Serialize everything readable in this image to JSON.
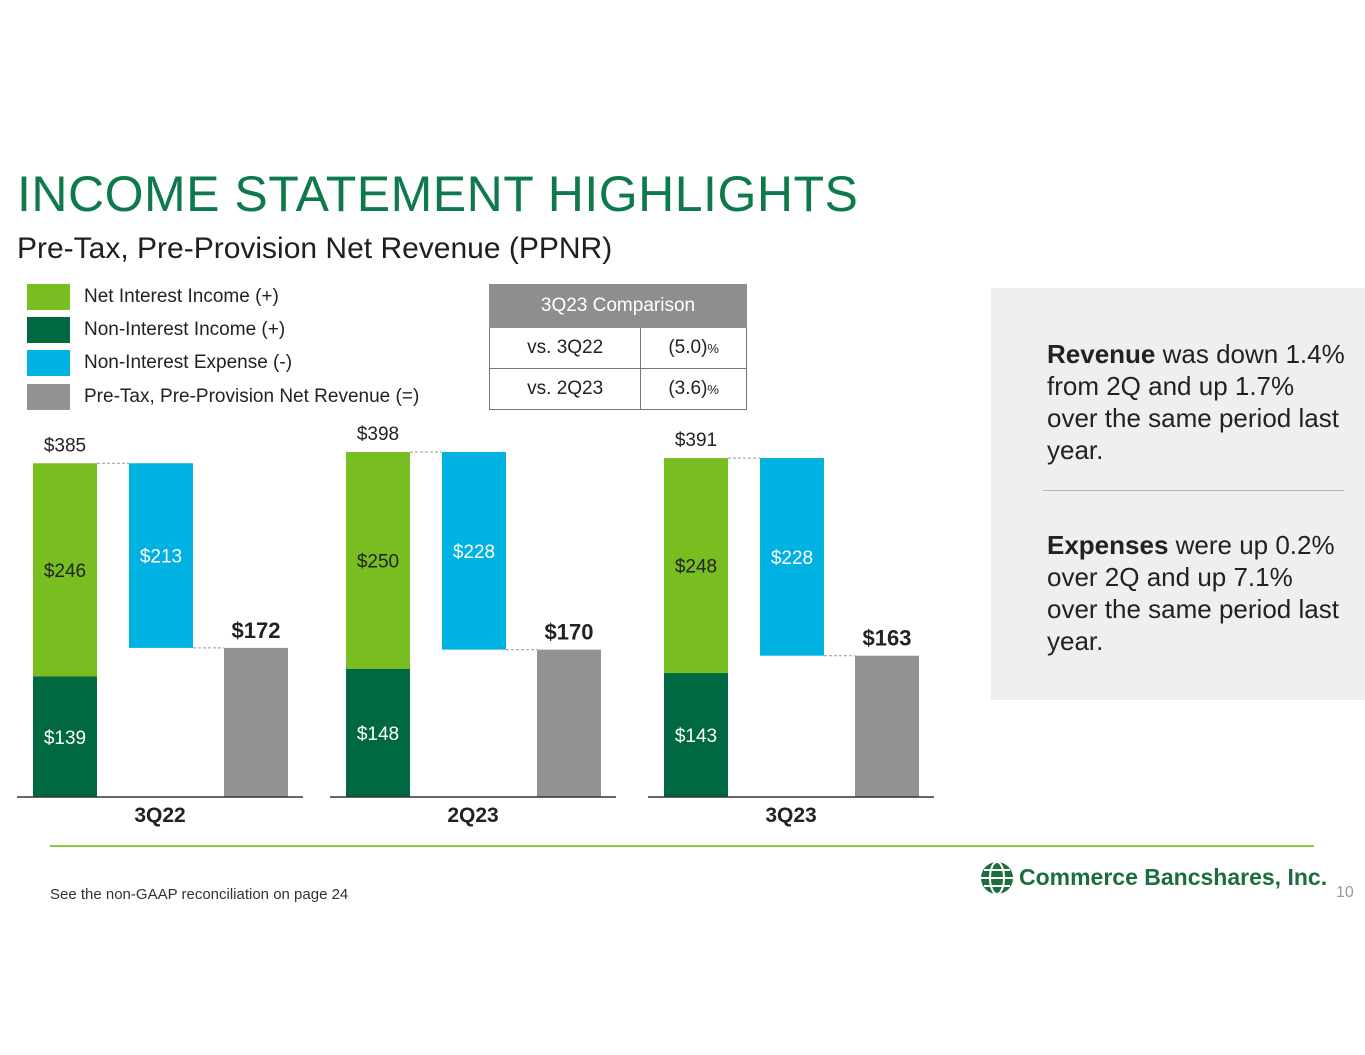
{
  "header": {
    "title": "INCOME STATEMENT HIGHLIGHTS",
    "subtitle": "Pre-Tax, Pre-Provision Net Revenue (PPNR)"
  },
  "legend": [
    {
      "label": "Net Interest Income (+)",
      "color": "#78be20"
    },
    {
      "label": "Non-Interest Income (+)",
      "color": "#006941"
    },
    {
      "label": "Non-Interest Expense (-)",
      "color": "#00b2e2"
    },
    {
      "label": "Pre-Tax, Pre-Provision Net Revenue (=)",
      "color": "#939393"
    }
  ],
  "comparison": {
    "header": "3Q23 Comparison",
    "rows": [
      {
        "label": "vs. 3Q22",
        "value": "(5.0)",
        "unit": "%"
      },
      {
        "label": "vs. 2Q23",
        "value": "(3.6)",
        "unit": "%"
      }
    ]
  },
  "chart_data": {
    "type": "bar",
    "title": "Pre-Tax, Pre-Provision Net Revenue (PPNR)",
    "categories": [
      "3Q22",
      "2Q23",
      "3Q23"
    ],
    "series": [
      {
        "name": "Non-Interest Income (+)",
        "values": [
          139,
          148,
          143
        ],
        "labels": [
          "$139",
          "$148",
          "$143"
        ]
      },
      {
        "name": "Net Interest Income (+)",
        "values": [
          246,
          250,
          248
        ],
        "labels": [
          "$246",
          "$250",
          "$248"
        ]
      },
      {
        "name": "Non-Interest Expense (-)",
        "values": [
          213,
          228,
          228
        ],
        "labels": [
          "$213",
          "$228",
          "$228"
        ]
      },
      {
        "name": "Pre-Tax, Pre-Provision Net Revenue (=)",
        "values": [
          172,
          170,
          163
        ],
        "labels": [
          "$172",
          "$170",
          "$163"
        ]
      }
    ],
    "totals": [
      385,
      398,
      391
    ],
    "total_labels": [
      "$385",
      "$398",
      "$391"
    ],
    "ylim": [
      0,
      400
    ],
    "colors": {
      "nii": "#78be20",
      "nonii": "#006941",
      "expense": "#00b2e2",
      "ppnr": "#939393",
      "axis": "#333333"
    }
  },
  "notes": {
    "revenue": {
      "bold": "Revenue",
      "text": " was down 1.4% from 2Q and up 1.7% over the same period last year."
    },
    "expenses": {
      "bold": "Expenses",
      "text": " were up 0.2% over 2Q and up 7.1% over the same period last year."
    }
  },
  "footer": {
    "note": "See the non-GAAP reconciliation on page 24",
    "logo_text": "Commerce Bancshares, Inc.",
    "page_number": "10"
  }
}
